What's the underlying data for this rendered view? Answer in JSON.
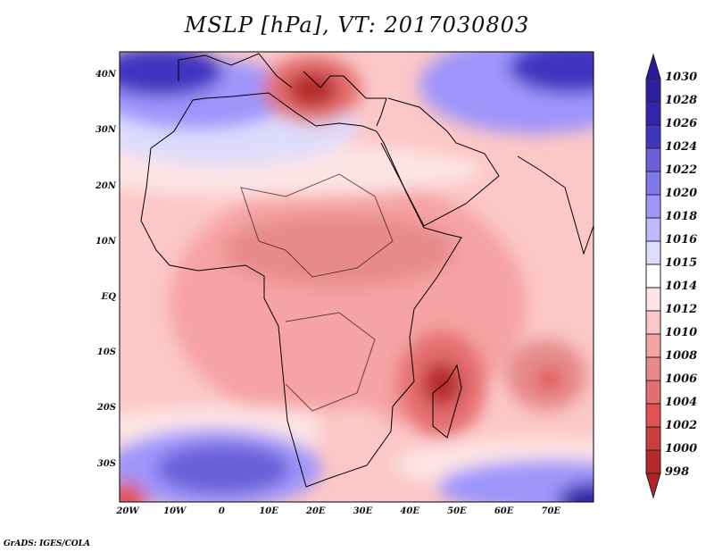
{
  "title": "MSLP [hPa], VT: 2017030803",
  "credit": "GrADS: IGES/COLA",
  "map": {
    "lat_labels": [
      "40N",
      "30N",
      "20N",
      "10N",
      "EQ",
      "10S",
      "20S",
      "30S"
    ],
    "lat_values": [
      40,
      30,
      20,
      10,
      0,
      -10,
      -20,
      -30
    ],
    "lon_labels": [
      "20W",
      "10W",
      "0",
      "10E",
      "20E",
      "30E",
      "40E",
      "50E",
      "60E",
      "70E"
    ],
    "lon_values": [
      -20,
      -10,
      0,
      10,
      20,
      30,
      40,
      50,
      60,
      70
    ]
  },
  "colorbar": {
    "labels": [
      "1030",
      "1028",
      "1026",
      "1024",
      "1022",
      "1020",
      "1018",
      "1016",
      "1015",
      "1014",
      "1012",
      "1010",
      "1008",
      "1006",
      "1004",
      "1002",
      "1000",
      "998"
    ],
    "colors": [
      "#2b21a0",
      "#3226ac",
      "#3f36c0",
      "#6a5fd8",
      "#7f78e8",
      "#9f95fb",
      "#c0b8fd",
      "#dedcfc",
      "#ffffff",
      "#fde4e4",
      "#fcc7c7",
      "#f6a3a3",
      "#e68a8a",
      "#e46e6e",
      "#e35252",
      "#cc3e3e",
      "#b52a2a"
    ],
    "top_color": "#2a1a9a",
    "bottom_color": "#b02626"
  }
}
